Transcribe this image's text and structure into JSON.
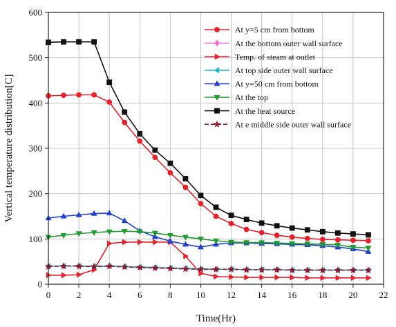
{
  "chart_data": {
    "type": "line",
    "xlabel": "Time(Hr)",
    "ylabel": "Vertical temperature distribution[C]",
    "xlim": [
      0,
      22
    ],
    "ylim": [
      0,
      600
    ],
    "xticks": [
      0,
      2,
      4,
      6,
      8,
      10,
      12,
      14,
      16,
      18,
      20,
      22
    ],
    "yticks": [
      0,
      100,
      200,
      300,
      400,
      500,
      600
    ],
    "grid": "vertical and horizontal gridlines",
    "legend_position": "top-right",
    "x": [
      0,
      1,
      2,
      3,
      4,
      5,
      6,
      7,
      8,
      9,
      10,
      11,
      12,
      13,
      14,
      15,
      16,
      17,
      18,
      19,
      20,
      21
    ],
    "series": [
      {
        "name": "At y=5 cm from bottom",
        "color": "#e8202a",
        "marker": "circle",
        "values": [
          416,
          417,
          418,
          418,
          402,
          357,
          316,
          280,
          246,
          214,
          178,
          150,
          134,
          121,
          114,
          108,
          104,
          101,
          99,
          98,
          97,
          96
        ]
      },
      {
        "name": "At the bottom outer wall surface",
        "color": "#f26bd4",
        "marker": "diamond",
        "values": [
          40,
          40,
          40,
          39,
          40,
          39,
          37,
          36,
          35,
          34,
          33,
          33,
          33,
          32,
          32,
          32,
          31,
          31,
          31,
          31,
          31,
          31
        ]
      },
      {
        "name": "Temp. of steam at outlet",
        "color": "#e8202a",
        "marker": "triangle-right",
        "values": [
          20,
          20,
          21,
          32,
          90,
          93,
          93,
          93,
          93,
          62,
          24,
          17,
          16,
          15,
          15,
          15,
          15,
          14,
          14,
          14,
          14,
          14
        ]
      },
      {
        "name": "At top side outer wall surface",
        "color": "#20b7c9",
        "marker": "triangle-left",
        "values": [
          40,
          40,
          40,
          39,
          40,
          39,
          38,
          37,
          36,
          35,
          34,
          33,
          33,
          32,
          32,
          32,
          31,
          31,
          31,
          31,
          31,
          31
        ]
      },
      {
        "name": "At y=50 cm from bottom",
        "color": "#1f3fd0",
        "marker": "triangle-up",
        "values": [
          146,
          150,
          153,
          156,
          157,
          140,
          118,
          105,
          95,
          88,
          82,
          88,
          91,
          91,
          90,
          89,
          88,
          87,
          85,
          82,
          78,
          72
        ]
      },
      {
        "name": "At the top",
        "color": "#1f9a2e",
        "marker": "triangle-down",
        "values": [
          104,
          108,
          112,
          114,
          116,
          117,
          116,
          113,
          108,
          104,
          100,
          96,
          93,
          92,
          92,
          91,
          90,
          89,
          88,
          87,
          82,
          80
        ]
      },
      {
        "name": "At the heat source",
        "color": "#111111",
        "marker": "square",
        "values": [
          534,
          535,
          535,
          535,
          446,
          380,
          332,
          296,
          267,
          233,
          196,
          170,
          152,
          143,
          135,
          129,
          124,
          120,
          116,
          113,
          111,
          109
        ]
      },
      {
        "name": "At e middle side outer wall surface",
        "color": "#8b1a2a",
        "marker": "star",
        "dashed": true,
        "values": [
          39,
          40,
          40,
          39,
          40,
          38,
          37,
          36,
          35,
          34,
          33,
          33,
          33,
          32,
          32,
          32,
          31,
          31,
          31,
          31,
          31,
          31
        ]
      }
    ]
  }
}
